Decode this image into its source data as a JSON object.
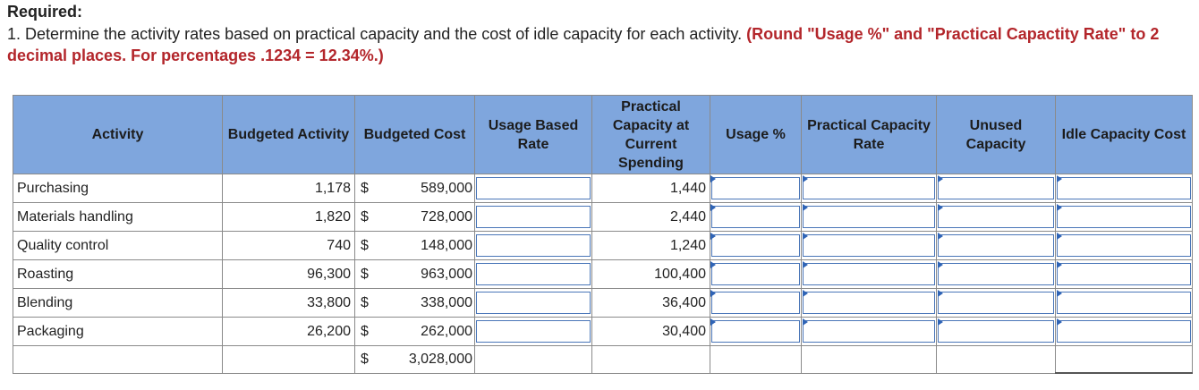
{
  "heading": "Required:",
  "instruction": {
    "prefix": "1. Determine the activity rates based on practical capacity and the cost of idle capacity for each activity.",
    "note": "(Round \"Usage %\" and \"Practical Capactity Rate\" to 2 decimal places. For percentages .1234 = 12.34%.)"
  },
  "table": {
    "headers": {
      "activity": "Activity",
      "budgeted_activity": "Budgeted Activity",
      "budgeted_cost": "Budgeted Cost",
      "usage_based_rate": "Usage Based Rate",
      "practical_capacity": "Practical Capacity at Current Spending",
      "usage_pct": "Usage %",
      "practical_rate": "Practical Capacity Rate",
      "unused_capacity": "Unused Capacity",
      "idle_cost": "Idle Capacity Cost"
    },
    "currency_symbol": "$",
    "rows": [
      {
        "activity": "Purchasing",
        "budgeted_activity": "1,178",
        "budgeted_cost": "589,000",
        "practical_capacity": "1,440"
      },
      {
        "activity": "Materials handling",
        "budgeted_activity": "1,820",
        "budgeted_cost": "728,000",
        "practical_capacity": "2,440"
      },
      {
        "activity": "Quality control",
        "budgeted_activity": "740",
        "budgeted_cost": "148,000",
        "practical_capacity": "1,240"
      },
      {
        "activity": "Roasting",
        "budgeted_activity": "96,300",
        "budgeted_cost": "963,000",
        "practical_capacity": "100,400"
      },
      {
        "activity": "Blending",
        "budgeted_activity": "33,800",
        "budgeted_cost": "338,000",
        "practical_capacity": "36,400"
      },
      {
        "activity": "Packaging",
        "budgeted_activity": "26,200",
        "budgeted_cost": "262,000",
        "practical_capacity": "30,400"
      }
    ],
    "total": {
      "budgeted_cost": "3,028,000"
    }
  }
}
